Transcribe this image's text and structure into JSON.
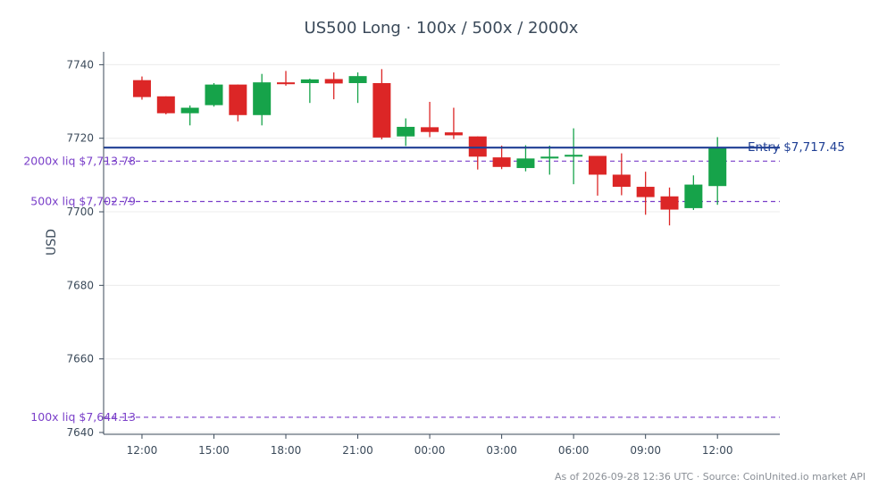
{
  "chart_data": {
    "type": "candlestick",
    "title": "US500 Long · 100x / 500x / 2000x",
    "ylabel": "USD",
    "xlabel": "",
    "ylim": [
      7639.5,
      7743.5
    ],
    "x_range": [
      -1.6,
      26.6
    ],
    "y_ticks": [
      7640,
      7660,
      7680,
      7700,
      7720,
      7740
    ],
    "x_ticks": [
      {
        "index": 0,
        "label": "12:00"
      },
      {
        "index": 3,
        "label": "15:00"
      },
      {
        "index": 6,
        "label": "18:00"
      },
      {
        "index": 9,
        "label": "21:00"
      },
      {
        "index": 12,
        "label": "00:00"
      },
      {
        "index": 15,
        "label": "03:00"
      },
      {
        "index": 18,
        "label": "06:00"
      },
      {
        "index": 21,
        "label": "09:00"
      },
      {
        "index": 24,
        "label": "12:00"
      }
    ],
    "colors": {
      "up": "#16a34a",
      "down": "#dc2626",
      "entry": "#1f3f94",
      "liquidation": "#7a3fc9",
      "grid": "#ececec",
      "axis": "#3b4a5a"
    },
    "candles": [
      {
        "o": 7735.8,
        "h": 7736.8,
        "l": 7730.5,
        "c": 7731.2
      },
      {
        "o": 7731.4,
        "h": 7731.4,
        "l": 7726.5,
        "c": 7726.8
      },
      {
        "o": 7726.8,
        "h": 7728.9,
        "l": 7723.5,
        "c": 7728.3
      },
      {
        "o": 7729.0,
        "h": 7735.0,
        "l": 7728.6,
        "c": 7734.6
      },
      {
        "o": 7734.6,
        "h": 7734.6,
        "l": 7724.6,
        "c": 7726.3
      },
      {
        "o": 7726.3,
        "h": 7737.5,
        "l": 7723.5,
        "c": 7735.2
      },
      {
        "o": 7735.2,
        "h": 7738.3,
        "l": 7734.3,
        "c": 7734.7
      },
      {
        "o": 7735.0,
        "h": 7736.2,
        "l": 7729.6,
        "c": 7736.0
      },
      {
        "o": 7736.1,
        "h": 7737.9,
        "l": 7730.6,
        "c": 7734.9
      },
      {
        "o": 7735.0,
        "h": 7737.9,
        "l": 7729.6,
        "c": 7736.9
      },
      {
        "o": 7735.0,
        "h": 7738.8,
        "l": 7719.7,
        "c": 7720.2
      },
      {
        "o": 7720.5,
        "h": 7725.4,
        "l": 7717.9,
        "c": 7723.1
      },
      {
        "o": 7723.0,
        "h": 7729.9,
        "l": 7720.3,
        "c": 7721.7
      },
      {
        "o": 7721.6,
        "h": 7728.3,
        "l": 7719.8,
        "c": 7720.8
      },
      {
        "o": 7720.5,
        "h": 7720.5,
        "l": 7711.5,
        "c": 7715.0
      },
      {
        "o": 7714.8,
        "h": 7718.0,
        "l": 7711.6,
        "c": 7712.2
      },
      {
        "o": 7711.9,
        "h": 7718.1,
        "l": 7711.0,
        "c": 7714.5
      },
      {
        "o": 7714.5,
        "h": 7718.0,
        "l": 7710.1,
        "c": 7715.0
      },
      {
        "o": 7715.0,
        "h": 7722.7,
        "l": 7707.5,
        "c": 7715.5
      },
      {
        "o": 7715.2,
        "h": 7715.2,
        "l": 7704.4,
        "c": 7710.1
      },
      {
        "o": 7710.1,
        "h": 7715.9,
        "l": 7704.5,
        "c": 7706.8
      },
      {
        "o": 7706.8,
        "h": 7710.9,
        "l": 7699.2,
        "c": 7704.0
      },
      {
        "o": 7704.2,
        "h": 7706.6,
        "l": 7696.3,
        "c": 7700.6
      },
      {
        "o": 7701.0,
        "h": 7709.9,
        "l": 7700.5,
        "c": 7707.4
      },
      {
        "o": 7707.0,
        "h": 7720.3,
        "l": 7701.9,
        "c": 7717.4
      }
    ],
    "entry": {
      "value": 7717.45,
      "label": "Entry $7,717.45"
    },
    "liquidations": [
      {
        "value": 7713.78,
        "label": "2000x liq $7,713.78"
      },
      {
        "value": 7702.79,
        "label": "500x liq $7,702.79"
      },
      {
        "value": 7644.13,
        "label": "100x liq $7,644.13"
      }
    ],
    "grid": true
  },
  "footer": {
    "source": "As of 2026-09-28 12:36 UTC · Source: CoinUnited.io market API"
  }
}
